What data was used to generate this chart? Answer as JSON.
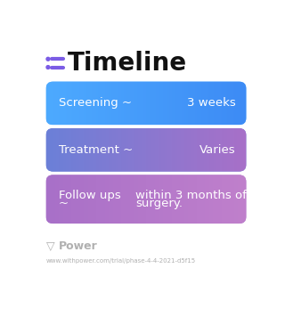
{
  "title": "Timeline",
  "title_icon_color": "#7B5CE5",
  "background_color": "#ffffff",
  "cards": [
    {
      "label": "Screening ~",
      "value": "3 weeks",
      "color_left": "#4DAAFF",
      "color_right": "#3D8BF5",
      "text_color": "#ffffff"
    },
    {
      "label": "Treatment ~",
      "value": "Varies",
      "color_left": "#6B80D8",
      "color_right": "#A870C8",
      "text_color": "#ffffff"
    },
    {
      "label1": "Follow ups",
      "label2": "~",
      "value1": "within 3 months of",
      "value2": "surgery.",
      "color_left": "#A870C8",
      "color_right": "#C080CC",
      "text_color": "#ffffff"
    }
  ],
  "footer_logo": "Power",
  "footer_url": "www.withpower.com/trial/phase-4-4-2021-d5f15",
  "footer_color": "#b0b0b0"
}
